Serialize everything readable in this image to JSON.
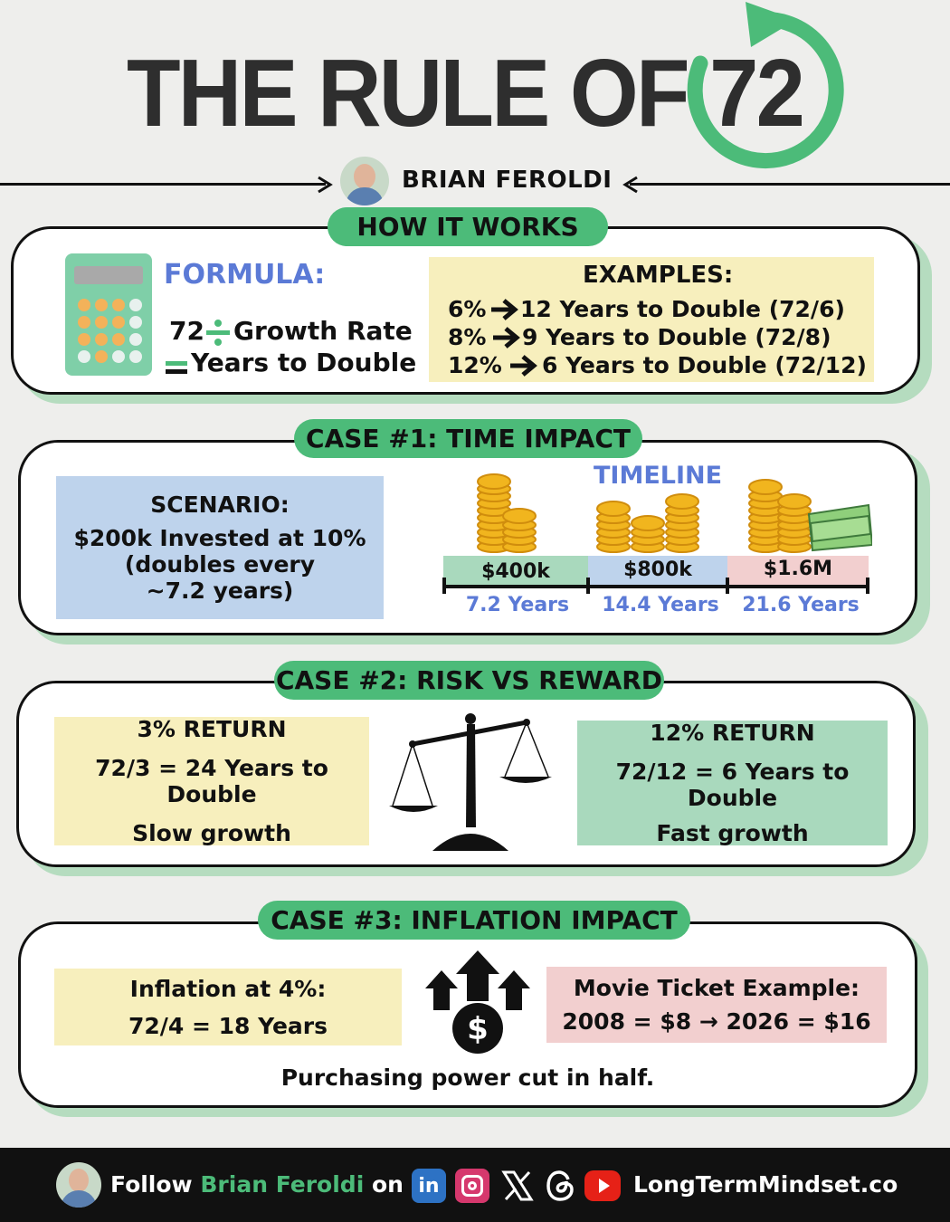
{
  "title": "THE RULE OF 72",
  "author": "BRIAN FEROLDI",
  "colors": {
    "accent_green": "#4cbb79",
    "shadow_green": "#b5dcbf",
    "blue_text": "#5b7ad6",
    "yellow": "#f7efbd",
    "blue_box": "#bed3ec",
    "green_box": "#a9d9bd",
    "pink_box": "#f2cfcf"
  },
  "how_it_works": {
    "heading": "HOW IT WORKS",
    "icon": "calculator-icon",
    "formula_label": "FORMULA:",
    "formula_line1_num": "72",
    "formula_line1_rest": "Growth Rate",
    "formula_line2": "Years to Double",
    "examples_title": "EXAMPLES:",
    "examples": [
      {
        "rate": "6%",
        "result": "12 Years to Double (72/6)"
      },
      {
        "rate": "8%",
        "result": "9 Years to Double (72/8)"
      },
      {
        "rate": "12%",
        "result": "6 Years to Double (72/12)"
      }
    ]
  },
  "case1": {
    "heading": "CASE #1: TIME IMPACT",
    "scenario_title": "SCENARIO:",
    "scenario_line1": "$200k Invested at 10%",
    "scenario_line2": "(doubles every",
    "scenario_line3": "~7.2 years)",
    "timeline_title": "TIMELINE",
    "timeline": [
      {
        "amount": "$400k",
        "years": "7.2 Years"
      },
      {
        "amount": "$800k",
        "years": "14.4 Years"
      },
      {
        "amount": "$1.6M",
        "years": "21.6 Years"
      }
    ]
  },
  "case2": {
    "heading": "CASE #2: RISK VS REWARD",
    "left": {
      "title": "3% RETURN",
      "calc": "72/3 = 24 Years to Double",
      "note": "Slow growth"
    },
    "icon": "balance-scale-icon",
    "right": {
      "title": "12% RETURN",
      "calc": "72/12 = 6 Years to Double",
      "note": "Fast growth"
    }
  },
  "case3": {
    "heading": "CASE #3: INFLATION IMPACT",
    "left_line1": "Inflation at 4%:",
    "left_line2": "72/4 = 18 Years",
    "icon": "dollar-arrows-up-icon",
    "right_line1": "Movie Ticket Example:",
    "right_line2": "2008 = $8 → 2026 = $16",
    "footer_note": "Purchasing power cut in half."
  },
  "footer": {
    "follow": "Follow",
    "name": "Brian Feroldi",
    "on": "on",
    "socials": [
      "linkedin-icon",
      "instagram-icon",
      "x-icon",
      "threads-icon",
      "youtube-icon"
    ],
    "website": "LongTermMindset.co"
  }
}
